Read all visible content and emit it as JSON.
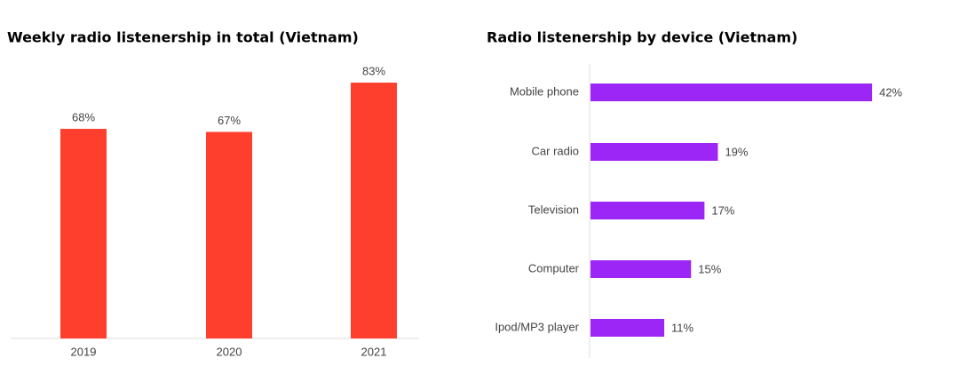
{
  "chart_data": [
    {
      "type": "bar",
      "title": "Weekly radio listenership in total (Vietnam)",
      "categories": [
        "2019",
        "2020",
        "2021"
      ],
      "values": [
        68,
        67,
        83
      ],
      "value_labels": [
        "68%",
        "67%",
        "83%"
      ],
      "color": "#fe3f2d"
    },
    {
      "type": "hbar",
      "title": "Radio listenership by device (Vietnam)",
      "categories": [
        "Mobile phone",
        "Car radio",
        "Television",
        "Computer",
        "Ipod/MP3 player"
      ],
      "values": [
        42,
        19,
        17,
        15,
        11
      ],
      "value_labels": [
        "42%",
        "19%",
        "17%",
        "15%",
        "11%"
      ],
      "color": "#9b26f6"
    }
  ]
}
